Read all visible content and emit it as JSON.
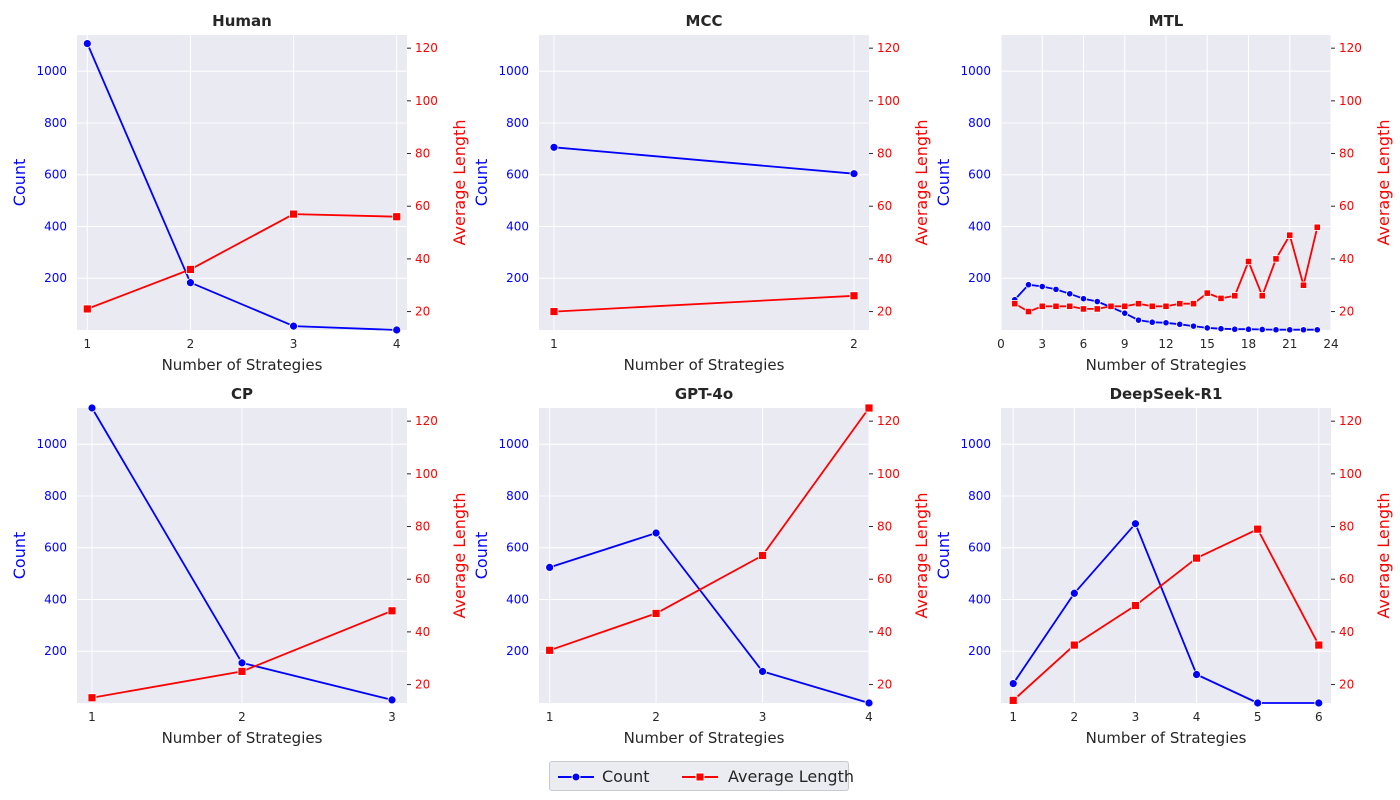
{
  "colors": {
    "count": "#0000ff",
    "avg_length": "#ff0000",
    "plot_bg": "#eaeaf2",
    "grid": "#ffffff",
    "text": "#262626"
  },
  "legend": {
    "count_label": "Count",
    "avg_label": "Average Length"
  },
  "chart_data": [
    {
      "type": "line",
      "title": "Human",
      "xlabel": "Number of Strategies",
      "ylabel_left": "Count",
      "ylabel_right": "Average Length",
      "xlim": [
        0.9,
        4.1
      ],
      "xticks": [
        1,
        2,
        3,
        4
      ],
      "ylim_left": [
        0,
        1140
      ],
      "yticks_left": [
        200,
        400,
        600,
        800,
        1000
      ],
      "ylim_right": [
        13,
        125
      ],
      "yticks_right": [
        20,
        40,
        60,
        80,
        100,
        120
      ],
      "series": [
        {
          "name": "Count",
          "axis": "left",
          "marker": "circle",
          "x": [
            1,
            2,
            3,
            4
          ],
          "values": [
            1107,
            183,
            15,
            0
          ]
        },
        {
          "name": "Average Length",
          "axis": "right",
          "marker": "square",
          "x": [
            1,
            2,
            3,
            4
          ],
          "values": [
            21,
            36,
            57,
            56
          ]
        }
      ]
    },
    {
      "type": "line",
      "title": "MCC",
      "xlabel": "Number of Strategies",
      "ylabel_left": "Count",
      "ylabel_right": "Average Length",
      "xlim": [
        0.95,
        2.05
      ],
      "xticks": [
        1,
        2
      ],
      "ylim_left": [
        0,
        1140
      ],
      "yticks_left": [
        200,
        400,
        600,
        800,
        1000
      ],
      "ylim_right": [
        13,
        125
      ],
      "yticks_right": [
        20,
        40,
        60,
        80,
        100,
        120
      ],
      "series": [
        {
          "name": "Count",
          "axis": "left",
          "marker": "circle",
          "x": [
            1,
            2
          ],
          "values": [
            706,
            604
          ]
        },
        {
          "name": "Average Length",
          "axis": "right",
          "marker": "square",
          "x": [
            1,
            2
          ],
          "values": [
            20,
            26
          ]
        }
      ]
    },
    {
      "type": "line",
      "title": "MTL",
      "xlabel": "Number of Strategies",
      "ylabel_left": "Count",
      "ylabel_right": "Average Length",
      "xlim": [
        0,
        24
      ],
      "xticks": [
        0,
        3,
        6,
        9,
        12,
        15,
        18,
        21,
        24
      ],
      "ylim_left": [
        0,
        1140
      ],
      "yticks_left": [
        200,
        400,
        600,
        800,
        1000
      ],
      "ylim_right": [
        13,
        125
      ],
      "yticks_right": [
        20,
        40,
        60,
        80,
        100,
        120
      ],
      "series": [
        {
          "name": "Count",
          "axis": "left",
          "marker": "circle",
          "x": [
            1,
            2,
            3,
            4,
            5,
            6,
            7,
            8,
            9,
            10,
            11,
            12,
            13,
            14,
            15,
            16,
            17,
            18,
            19,
            20,
            21,
            22,
            23
          ],
          "values": [
            117,
            175,
            168,
            157,
            140,
            121,
            110,
            88,
            65,
            38,
            30,
            28,
            22,
            15,
            8,
            5,
            3,
            3,
            2,
            1,
            1,
            1,
            1
          ]
        },
        {
          "name": "Average Length",
          "axis": "right",
          "marker": "square",
          "x": [
            1,
            2,
            3,
            4,
            5,
            6,
            7,
            8,
            9,
            10,
            11,
            12,
            13,
            14,
            15,
            16,
            17,
            18,
            19,
            20,
            21,
            22,
            23
          ],
          "values": [
            23,
            20,
            22,
            22,
            22,
            21,
            21,
            22,
            22,
            23,
            22,
            22,
            23,
            23,
            27,
            25,
            26,
            39,
            26,
            40,
            49,
            30,
            52
          ]
        }
      ]
    },
    {
      "type": "line",
      "title": "CP",
      "xlabel": "Number of Strategies",
      "ylabel_left": "Count",
      "ylabel_right": "Average Length",
      "xlim": [
        0.9,
        3.1
      ],
      "xticks": [
        1,
        2,
        3
      ],
      "ylim_left": [
        0,
        1140
      ],
      "yticks_left": [
        200,
        400,
        600,
        800,
        1000
      ],
      "ylim_right": [
        13,
        125
      ],
      "yticks_right": [
        20,
        40,
        60,
        80,
        100,
        120
      ],
      "series": [
        {
          "name": "Count",
          "axis": "left",
          "marker": "circle",
          "x": [
            1,
            2,
            3
          ],
          "values": [
            1140,
            155,
            12
          ]
        },
        {
          "name": "Average Length",
          "axis": "right",
          "marker": "square",
          "x": [
            1,
            2,
            3
          ],
          "values": [
            15,
            25,
            48
          ]
        }
      ]
    },
    {
      "type": "line",
      "title": "GPT-4o",
      "xlabel": "Number of Strategies",
      "ylabel_left": "Count",
      "ylabel_right": "Average Length",
      "xlim": [
        0.9,
        4.0
      ],
      "xticks": [
        1,
        2,
        3,
        4
      ],
      "ylim_left": [
        0,
        1140
      ],
      "yticks_left": [
        200,
        400,
        600,
        800,
        1000
      ],
      "ylim_right": [
        13,
        125
      ],
      "yticks_right": [
        20,
        40,
        60,
        80,
        100,
        120
      ],
      "series": [
        {
          "name": "Count",
          "axis": "left",
          "marker": "circle",
          "x": [
            1,
            2,
            3,
            4
          ],
          "values": [
            524,
            657,
            122,
            0
          ]
        },
        {
          "name": "Average Length",
          "axis": "right",
          "marker": "square",
          "x": [
            1,
            2,
            3,
            4
          ],
          "values": [
            33,
            47,
            69,
            125
          ]
        }
      ]
    },
    {
      "type": "line",
      "title": "DeepSeek-R1",
      "xlabel": "Number of Strategies",
      "ylabel_left": "Count",
      "ylabel_right": "Average Length",
      "xlim": [
        0.8,
        6.2
      ],
      "xticks": [
        1,
        2,
        3,
        4,
        5,
        6
      ],
      "ylim_left": [
        0,
        1140
      ],
      "yticks_left": [
        200,
        400,
        600,
        800,
        1000
      ],
      "ylim_right": [
        13,
        125
      ],
      "yticks_right": [
        20,
        40,
        60,
        80,
        100,
        120
      ],
      "series": [
        {
          "name": "Count",
          "axis": "left",
          "marker": "circle",
          "x": [
            1,
            2,
            3,
            4,
            5,
            6
          ],
          "values": [
            75,
            424,
            693,
            110,
            0,
            0
          ]
        },
        {
          "name": "Average Length",
          "axis": "right",
          "marker": "square",
          "x": [
            1,
            2,
            3,
            4,
            5,
            6
          ],
          "values": [
            14,
            35,
            50,
            68,
            79,
            35
          ]
        }
      ]
    }
  ]
}
